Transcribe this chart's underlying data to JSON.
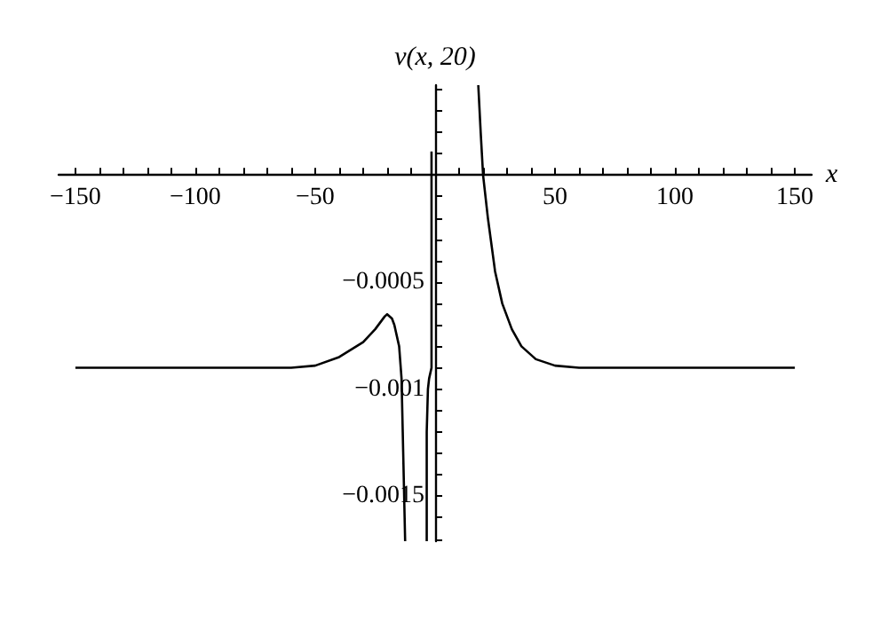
{
  "chart_data": {
    "type": "line",
    "xlabel": "x",
    "ylabel": "v(x, 20)",
    "xlim": [
      -157,
      157
    ],
    "ylim": [
      -0.00171,
      0.00042
    ],
    "xticks": [
      {
        "value": -150,
        "label": "−150"
      },
      {
        "value": -140,
        "label": null
      },
      {
        "value": -130,
        "label": null
      },
      {
        "value": -120,
        "label": null
      },
      {
        "value": -110,
        "label": null
      },
      {
        "value": -100,
        "label": "−100"
      },
      {
        "value": -90,
        "label": null
      },
      {
        "value": -80,
        "label": null
      },
      {
        "value": -70,
        "label": null
      },
      {
        "value": -60,
        "label": null
      },
      {
        "value": -50,
        "label": "−50"
      },
      {
        "value": -40,
        "label": null
      },
      {
        "value": -30,
        "label": null
      },
      {
        "value": -20,
        "label": null
      },
      {
        "value": -10,
        "label": null
      },
      {
        "value": 10,
        "label": null
      },
      {
        "value": 20,
        "label": null
      },
      {
        "value": 30,
        "label": null
      },
      {
        "value": 40,
        "label": null
      },
      50,
      {
        "value": 60,
        "label": null
      },
      {
        "value": 70,
        "label": null
      },
      {
        "value": 80,
        "label": null
      },
      {
        "value": 90,
        "label": null
      },
      100,
      {
        "value": 110,
        "label": null
      },
      {
        "value": 120,
        "label": null
      },
      {
        "value": 130,
        "label": null
      },
      {
        "value": 140,
        "label": null
      },
      150
    ],
    "yticks": [
      {
        "value": -0.0017,
        "label": null
      },
      {
        "value": -0.0016,
        "label": null
      },
      {
        "value": -0.0015,
        "label": "−0.0015"
      },
      {
        "value": -0.0014,
        "label": null
      },
      {
        "value": -0.0013,
        "label": null
      },
      {
        "value": -0.0012,
        "label": null
      },
      {
        "value": -0.0011,
        "label": null
      },
      {
        "value": -0.001,
        "label": "−0.001"
      },
      {
        "value": -0.0009,
        "label": null
      },
      {
        "value": -0.0008,
        "label": null
      },
      {
        "value": -0.0007,
        "label": null
      },
      {
        "value": -0.0006,
        "label": null
      },
      {
        "value": -0.0005,
        "label": "−0.0005"
      },
      {
        "value": -0.0004,
        "label": null
      },
      {
        "value": -0.0003,
        "label": null
      },
      {
        "value": -0.0002,
        "label": null
      },
      {
        "value": -0.0001,
        "label": null
      },
      {
        "value": 0.0001,
        "label": null
      },
      {
        "value": 0.0002,
        "label": null
      },
      {
        "value": 0.0003,
        "label": null
      },
      {
        "value": 0.0004,
        "label": null
      }
    ],
    "grid": false,
    "marker": "none",
    "line_style": "solid",
    "series": [
      {
        "color": "#000000",
        "x": [
          -150,
          -100,
          -60,
          -50,
          -40,
          -30,
          -25,
          -21,
          -20,
          -18,
          -17,
          -15,
          -14,
          -13.5,
          -12.5
        ],
        "values": [
          -0.0009,
          -0.0009,
          -0.0009,
          -0.00089,
          -0.00085,
          -0.00078,
          -0.00072,
          -0.00066,
          -0.00065,
          -0.00067,
          -0.0007,
          -0.0008,
          -0.00095,
          -0.0012,
          -0.00171
        ]
      },
      {
        "color": "#000000",
        "x": [
          -3.5,
          -3.5,
          -3,
          -2.5,
          -1.5,
          -1.5,
          -1.5
        ],
        "values": [
          -0.00171,
          -0.0012,
          -0.001,
          -0.00095,
          -0.0009,
          0,
          0.00011
        ]
      },
      {
        "color": "#000000",
        "x": [
          18,
          19,
          20,
          22,
          25,
          28,
          32,
          36,
          42,
          50,
          60,
          100,
          150
        ],
        "values": [
          0.00042,
          0.0002,
          0,
          -0.0002,
          -0.00045,
          -0.0006,
          -0.00072,
          -0.0008,
          -0.00086,
          -0.00089,
          -0.0009,
          -0.0009,
          -0.0009
        ]
      }
    ]
  }
}
